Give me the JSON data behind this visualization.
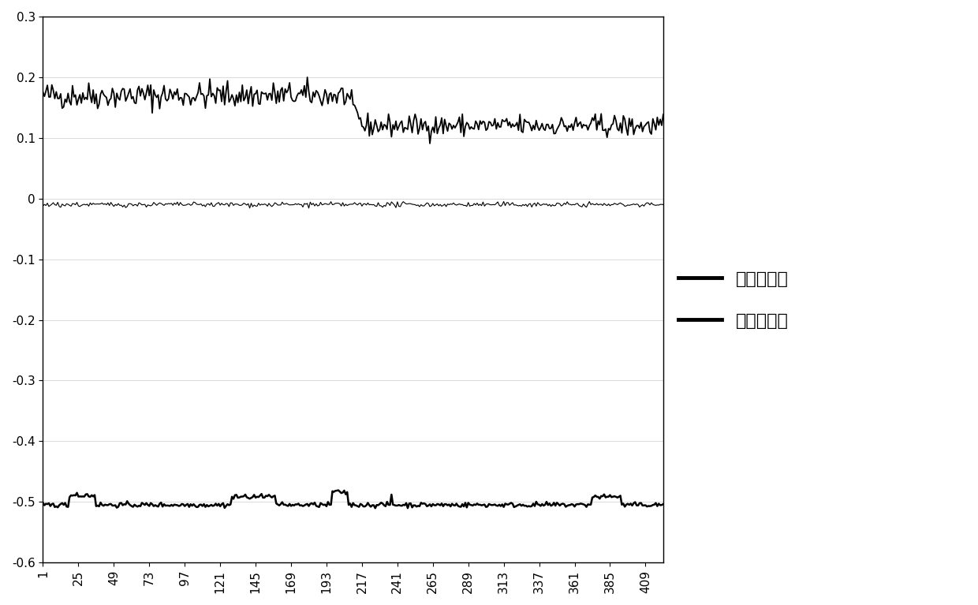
{
  "xlim": [
    1,
    421
  ],
  "ylim": [
    -0.6,
    0.3
  ],
  "yticks": [
    -0.6,
    -0.5,
    -0.4,
    -0.3,
    -0.2,
    -0.1,
    0,
    0.1,
    0.2,
    0.3
  ],
  "xticks": [
    1,
    25,
    49,
    73,
    97,
    121,
    145,
    169,
    193,
    217,
    241,
    265,
    289,
    313,
    337,
    361,
    385,
    409
  ],
  "legend_labels": [
    "方位角之差",
    "俧仰角之差"
  ],
  "line_color": "#000000",
  "background_color": "#ffffff",
  "n_points": 421,
  "legend_fontsize": 16,
  "tick_fontsize": 11
}
